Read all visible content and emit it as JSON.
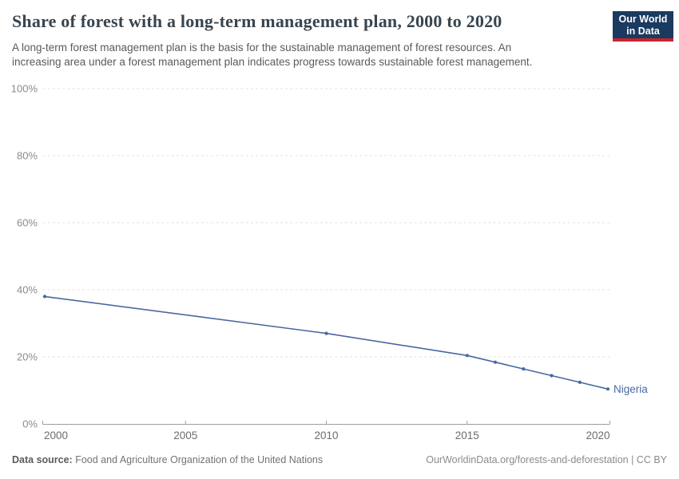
{
  "header": {
    "title": "Share of forest with a long-term management plan, 2000 to 2020",
    "subtitle_lines": [
      "A long-term forest management plan is the basis for the sustainable management of forest resources. An",
      "increasing area under a forest management plan indicates progress towards sustainable forest management."
    ],
    "logo": {
      "line1": "Our World",
      "line2": "in Data",
      "bg_color": "#1b3a5f",
      "accent_color": "#c7242e"
    }
  },
  "chart_data": {
    "type": "line",
    "title": "Share of forest with a long-term management plan, 2000 to 2020",
    "xlabel": "",
    "ylabel": "",
    "xlim": [
      2000,
      2020
    ],
    "ylim": [
      0,
      100
    ],
    "x_ticks": [
      2000,
      2005,
      2010,
      2015,
      2020
    ],
    "y_ticks": [
      0,
      20,
      40,
      60,
      80,
      100
    ],
    "y_tick_suffix": "%",
    "grid": "horizontal-dashed",
    "legend_position": "end-of-line-label",
    "series": [
      {
        "name": "Nigeria",
        "color": "#4868a2",
        "points": [
          [
            2000,
            38.0
          ],
          [
            2010,
            27.0
          ],
          [
            2015,
            20.4
          ],
          [
            2016,
            18.4
          ],
          [
            2017,
            16.4
          ],
          [
            2018,
            14.4
          ],
          [
            2019,
            12.4
          ],
          [
            2020,
            10.4
          ]
        ]
      }
    ]
  },
  "footer": {
    "source_label": "Data source:",
    "source_value": "Food and Agriculture Organization of the United Nations",
    "license": "OurWorldinData.org/forests-and-deforestation | CC BY"
  }
}
